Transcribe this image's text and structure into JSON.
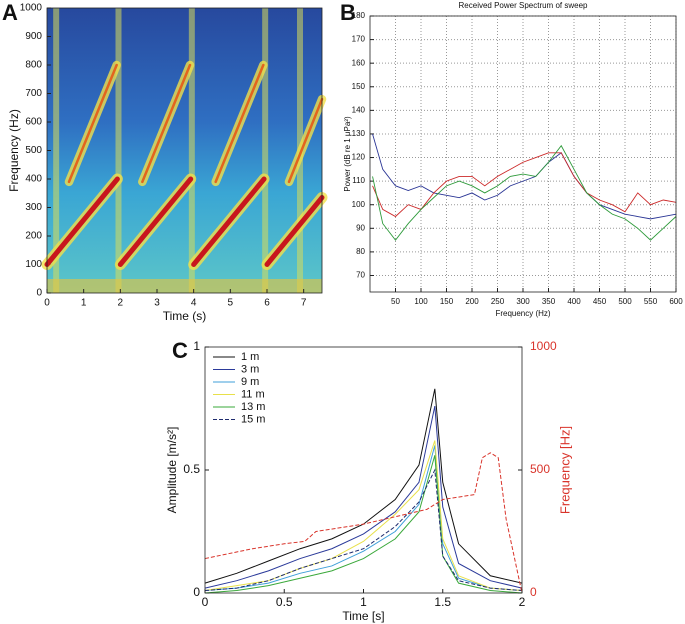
{
  "chart_data": [
    {
      "type": "spectrogram",
      "label": "A",
      "x_label": "Time (s)",
      "y_label": "Frequency (Hz)",
      "xlim": [
        0,
        7.5
      ],
      "xticks": [
        0,
        1,
        2,
        3,
        4,
        5,
        6,
        7
      ],
      "ylim": [
        0,
        1000
      ],
      "yticks": [
        0,
        100,
        200,
        300,
        400,
        500,
        600,
        700,
        800,
        900,
        1000
      ],
      "sweep_color": "#c8161d",
      "harmonic_color": "#e3641e",
      "sweeps": [
        {
          "x": [
            0,
            1.92
          ],
          "y": [
            100,
            400
          ]
        },
        {
          "x": [
            2,
            3.92
          ],
          "y": [
            100,
            400
          ]
        },
        {
          "x": [
            4,
            5.92
          ],
          "y": [
            100,
            400
          ]
        },
        {
          "x": [
            6,
            7.5
          ],
          "y": [
            100,
            335
          ]
        }
      ],
      "harmonics": [
        {
          "x": [
            0.6,
            1.9
          ],
          "y": [
            390,
            800
          ]
        },
        {
          "x": [
            2.6,
            3.9
          ],
          "y": [
            390,
            800
          ]
        },
        {
          "x": [
            4.6,
            5.9
          ],
          "y": [
            390,
            800
          ]
        },
        {
          "x": [
            6.6,
            7.5
          ],
          "y": [
            390,
            680
          ]
        }
      ]
    },
    {
      "type": "line",
      "label": "B",
      "title": "Received Power Spectrum of sweep",
      "x_label": "Frequency (Hz)",
      "y_label": "Power (dB re 1 μPa²)",
      "xlim": [
        0,
        600
      ],
      "xticks": [
        50,
        100,
        150,
        200,
        250,
        300,
        350,
        400,
        450,
        500,
        550,
        600
      ],
      "ylim": [
        63,
        180
      ],
      "yticks": [
        70,
        80,
        90,
        100,
        110,
        120,
        130,
        140,
        150,
        160,
        170,
        180
      ],
      "grid": true,
      "x": [
        5,
        25,
        50,
        75,
        100,
        125,
        150,
        175,
        200,
        225,
        250,
        275,
        300,
        325,
        350,
        375,
        400,
        425,
        450,
        475,
        500,
        525,
        550,
        575,
        600
      ],
      "series": [
        {
          "color": "#2a3595",
          "values": [
            130,
            115,
            108,
            106,
            108,
            105,
            104,
            103,
            105,
            102,
            104,
            108,
            110,
            112,
            118,
            122,
            112,
            105,
            100,
            98,
            96,
            95,
            94,
            95,
            96
          ]
        },
        {
          "color": "#cc2a2a",
          "values": [
            108,
            98,
            95,
            100,
            98,
            105,
            110,
            112,
            112,
            108,
            112,
            115,
            118,
            120,
            122,
            122,
            112,
            105,
            102,
            100,
            97,
            105,
            100,
            102,
            101
          ]
        },
        {
          "color": "#2d9a3a",
          "values": [
            112,
            92,
            85,
            92,
            98,
            103,
            108,
            110,
            108,
            105,
            108,
            112,
            113,
            112,
            118,
            125,
            115,
            105,
            100,
            96,
            94,
            90,
            85,
            90,
            95
          ]
        }
      ]
    },
    {
      "type": "line",
      "label": "C",
      "x_label": "Time [s]",
      "y_label": "Amplitude [m/s²]",
      "y2_label": "Frequency [Hz]",
      "y2_color": "#d9342b",
      "xlim": [
        0,
        2
      ],
      "xticks": [
        0,
        0.5,
        1,
        1.5,
        2
      ],
      "ylim": [
        0,
        1
      ],
      "yticks": [
        0,
        0.5,
        1
      ],
      "y2lim": [
        0,
        1000
      ],
      "y2ticks": [
        0,
        500,
        1000
      ],
      "legend": "upper left",
      "x": [
        0,
        0.2,
        0.4,
        0.6,
        0.8,
        1.0,
        1.2,
        1.35,
        1.45,
        1.5,
        1.6,
        1.8,
        2.0
      ],
      "series": [
        {
          "name": "1 m",
          "color": "#111111",
          "values": [
            0.04,
            0.08,
            0.13,
            0.18,
            0.22,
            0.28,
            0.38,
            0.52,
            0.83,
            0.45,
            0.2,
            0.07,
            0.04
          ]
        },
        {
          "name": "3 m",
          "color": "#2b3a9a",
          "values": [
            0.02,
            0.05,
            0.09,
            0.14,
            0.18,
            0.24,
            0.33,
            0.45,
            0.76,
            0.35,
            0.12,
            0.05,
            0.02
          ]
        },
        {
          "name": "9 m",
          "color": "#3f9fd8",
          "values": [
            0.01,
            0.02,
            0.04,
            0.08,
            0.11,
            0.17,
            0.25,
            0.36,
            0.6,
            0.2,
            0.06,
            0.02,
            0.01
          ]
        },
        {
          "name": "11 m",
          "color": "#e8e04a",
          "values": [
            0.01,
            0.03,
            0.05,
            0.1,
            0.14,
            0.21,
            0.32,
            0.42,
            0.62,
            0.22,
            0.07,
            0.02,
            0.01
          ]
        },
        {
          "name": "13 m",
          "color": "#3aa83a",
          "values": [
            0.0,
            0.01,
            0.03,
            0.06,
            0.09,
            0.14,
            0.22,
            0.33,
            0.56,
            0.15,
            0.04,
            0.01,
            0.0
          ]
        },
        {
          "name": "15 m",
          "color": "#1e2b6e",
          "linestyle": "dashed",
          "values": [
            0.01,
            0.02,
            0.05,
            0.1,
            0.14,
            0.18,
            0.27,
            0.37,
            0.5,
            0.15,
            0.05,
            0.02,
            0.01
          ]
        },
        {
          "color": "#d9342b",
          "linestyle": "dashed",
          "axis": "y2",
          "x": [
            0,
            0.3,
            0.5,
            0.63,
            0.7,
            1.0,
            1.4,
            1.5,
            1.7,
            1.75,
            1.8,
            1.85,
            1.9,
            2.0
          ],
          "values": [
            140,
            180,
            200,
            210,
            250,
            280,
            340,
            380,
            400,
            550,
            570,
            550,
            300,
            0
          ]
        }
      ]
    }
  ]
}
